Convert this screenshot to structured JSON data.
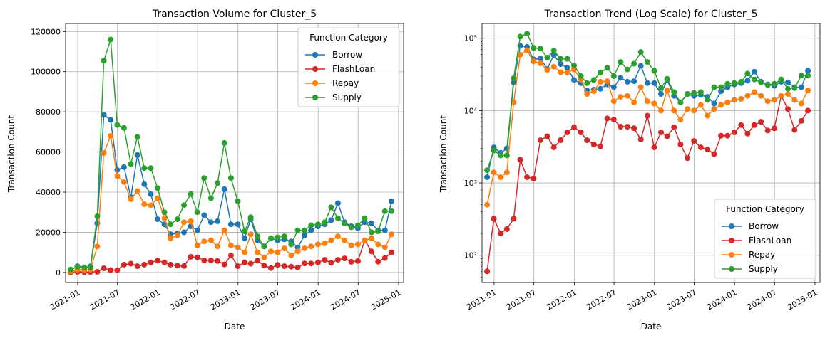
{
  "colors": {
    "Borrow": "#1f77b4",
    "FlashLoan": "#d62728",
    "Repay": "#ff7f0e",
    "Supply": "#2ca02c"
  },
  "chart_data": [
    {
      "type": "line",
      "title": "Transaction Volume for Cluster_5",
      "xlabel": "Date",
      "ylabel": "Transaction Count",
      "yscale": "linear",
      "ylim": [
        -5000,
        124000
      ],
      "yticks": [
        0,
        20000,
        40000,
        60000,
        80000,
        100000,
        120000
      ],
      "ytick_labels": [
        "0",
        "20000",
        "40000",
        "60000",
        "80000",
        "100000",
        "120000"
      ],
      "xlim": [
        "2020-11-07",
        "2025-01-24"
      ],
      "xticks": [
        "2021-01-01",
        "2021-07-01",
        "2022-01-01",
        "2022-07-01",
        "2023-01-01",
        "2023-07-01",
        "2024-01-01",
        "2024-07-01",
        "2025-01-01"
      ],
      "xtick_labels": [
        "2021-01",
        "2021-07",
        "2022-01",
        "2022-07",
        "2023-01",
        "2023-07",
        "2024-01",
        "2024-07",
        "2025-01"
      ],
      "grid": true,
      "legend": {
        "title": "Function Category",
        "location": "upper right"
      },
      "x": [
        "2020-11-30",
        "2020-12-31",
        "2021-01-31",
        "2021-02-28",
        "2021-03-31",
        "2021-04-30",
        "2021-05-31",
        "2021-06-30",
        "2021-07-31",
        "2021-08-31",
        "2021-09-30",
        "2021-10-31",
        "2021-11-30",
        "2021-12-31",
        "2022-01-31",
        "2022-02-28",
        "2022-03-31",
        "2022-04-30",
        "2022-05-31",
        "2022-06-30",
        "2022-07-31",
        "2022-08-31",
        "2022-09-30",
        "2022-10-31",
        "2022-11-30",
        "2022-12-31",
        "2023-01-31",
        "2023-02-28",
        "2023-03-31",
        "2023-04-30",
        "2023-05-31",
        "2023-06-30",
        "2023-07-31",
        "2023-08-31",
        "2023-09-30",
        "2023-10-31",
        "2023-11-30",
        "2023-12-31",
        "2024-01-31",
        "2024-02-29",
        "2024-03-31",
        "2024-04-30",
        "2024-05-31",
        "2024-06-30",
        "2024-07-31",
        "2024-08-31",
        "2024-09-30",
        "2024-10-31",
        "2024-11-30"
      ],
      "series": [
        {
          "name": "Borrow",
          "values": [
            1200,
            3100,
            2600,
            3000,
            24500,
            78500,
            76000,
            51000,
            52500,
            37500,
            58500,
            44000,
            39000,
            26500,
            24000,
            19000,
            19500,
            20000,
            23000,
            21000,
            28500,
            25000,
            25500,
            41500,
            24000,
            24000,
            17000,
            26500,
            16000,
            13000,
            17000,
            16000,
            16500,
            15500,
            12500,
            18500,
            21000,
            23000,
            24000,
            26000,
            34500,
            25000,
            23000,
            22000,
            25000,
            24500,
            21000,
            21000,
            35500
          ]
        },
        {
          "name": "FlashLoan",
          "values": [
            60,
            320,
            200,
            230,
            320,
            2100,
            1200,
            1150,
            3900,
            4400,
            3100,
            3900,
            5000,
            5900,
            5000,
            3900,
            3400,
            3200,
            7800,
            7500,
            6000,
            6000,
            5700,
            4000,
            8500,
            3100,
            5000,
            4400,
            5900,
            3400,
            2200,
            3800,
            3100,
            2900,
            2500,
            4500,
            4500,
            5000,
            6300,
            4800,
            6300,
            7000,
            5300,
            5700,
            16000,
            10500,
            5400,
            7200,
            10000
          ]
        },
        {
          "name": "Repay",
          "values": [
            500,
            1400,
            1200,
            1400,
            13000,
            59500,
            68000,
            48000,
            45000,
            36500,
            40500,
            34000,
            33500,
            37000,
            27000,
            17000,
            18500,
            25000,
            25500,
            13500,
            15500,
            16000,
            13000,
            21000,
            13500,
            12500,
            10000,
            19000,
            10000,
            7500,
            10500,
            10000,
            12000,
            8500,
            10500,
            12000,
            13000,
            14000,
            14500,
            16000,
            18000,
            16000,
            13500,
            14000,
            16000,
            17000,
            14000,
            12500,
            19000
          ]
        },
        {
          "name": "Supply",
          "values": [
            1500,
            2800,
            2400,
            2400,
            28000,
            105500,
            116000,
            73500,
            72000,
            54000,
            67500,
            52000,
            52000,
            42000,
            30000,
            24000,
            26500,
            33500,
            39000,
            30000,
            47000,
            37000,
            44500,
            64500,
            47000,
            35500,
            20500,
            27500,
            18000,
            13000,
            17000,
            17500,
            18000,
            14000,
            21000,
            21000,
            23500,
            24000,
            25000,
            32500,
            27000,
            24500,
            22500,
            23500,
            27000,
            20000,
            20500,
            30500,
            30500
          ]
        }
      ]
    },
    {
      "type": "line",
      "title": "Transaction Trend (Log Scale) for Cluster_5",
      "xlabel": "Date",
      "ylabel": "Transaction Count",
      "yscale": "log",
      "ylim": [
        42,
        160000
      ],
      "yticks": [
        100,
        1000,
        10000,
        100000
      ],
      "ytick_labels": [
        "10²",
        "10³",
        "10⁴",
        "10⁵"
      ],
      "xlim": [
        "2020-11-07",
        "2025-01-24"
      ],
      "xticks": [
        "2021-01-01",
        "2021-07-01",
        "2022-01-01",
        "2022-07-01",
        "2023-01-01",
        "2023-07-01",
        "2024-01-01",
        "2024-07-01",
        "2025-01-01"
      ],
      "xtick_labels": [
        "2021-01",
        "2021-07",
        "2022-01",
        "2022-07",
        "2023-01",
        "2023-07",
        "2024-01",
        "2024-07",
        "2025-01"
      ],
      "grid": true,
      "legend": {
        "title": "Function Category",
        "location": "lower right"
      },
      "series_ref": 0
    }
  ]
}
